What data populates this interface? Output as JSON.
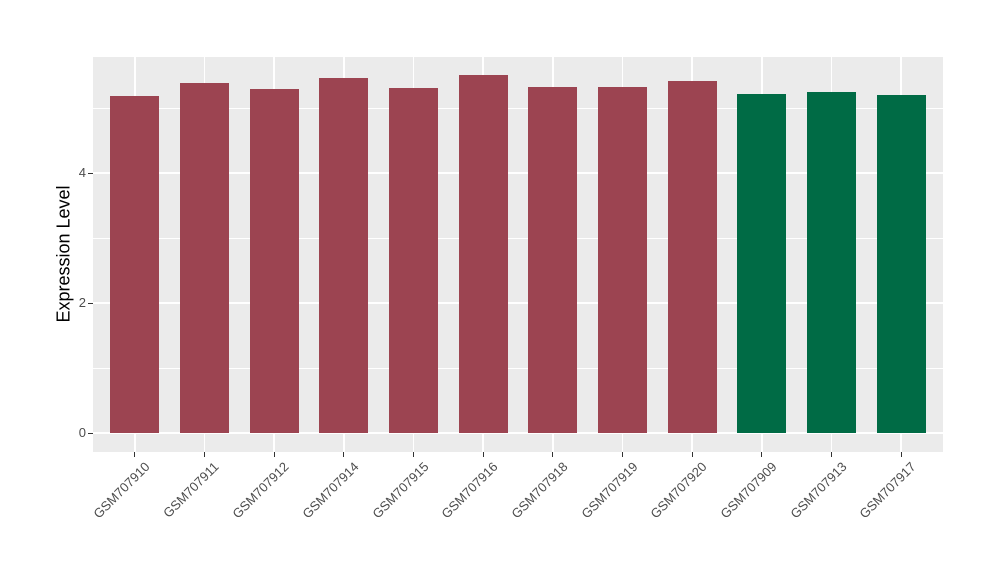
{
  "chart_data": {
    "type": "bar",
    "title": "",
    "xlabel": "",
    "ylabel": "Expression Level",
    "categories": [
      "GSM707910",
      "GSM707911",
      "GSM707912",
      "GSM707914",
      "GSM707915",
      "GSM707916",
      "GSM707918",
      "GSM707919",
      "GSM707920",
      "GSM707909",
      "GSM707913",
      "GSM707917"
    ],
    "values": [
      5.19,
      5.38,
      5.3,
      5.46,
      5.31,
      5.51,
      5.32,
      5.33,
      5.42,
      5.21,
      5.25,
      5.2
    ],
    "groups": [
      "group1",
      "group1",
      "group1",
      "group1",
      "group1",
      "group1",
      "group1",
      "group1",
      "group1",
      "group2",
      "group2",
      "group2"
    ],
    "group_colors": {
      "group1": "#9C4451",
      "group2": "#006B45"
    },
    "yticks": [
      0,
      2,
      4
    ],
    "ytick_labels": [
      "0",
      "2",
      "4"
    ],
    "minor_yticks": [
      1,
      3,
      5
    ],
    "ylim": [
      0,
      5.79
    ],
    "x_label_angle": 45,
    "legend_position": "none",
    "grid": true,
    "panel_bg": "#EBEBEB",
    "grid_color": "#FFFFFF",
    "axis_text_color": "#4D4D4D",
    "tick_color": "#333333"
  }
}
